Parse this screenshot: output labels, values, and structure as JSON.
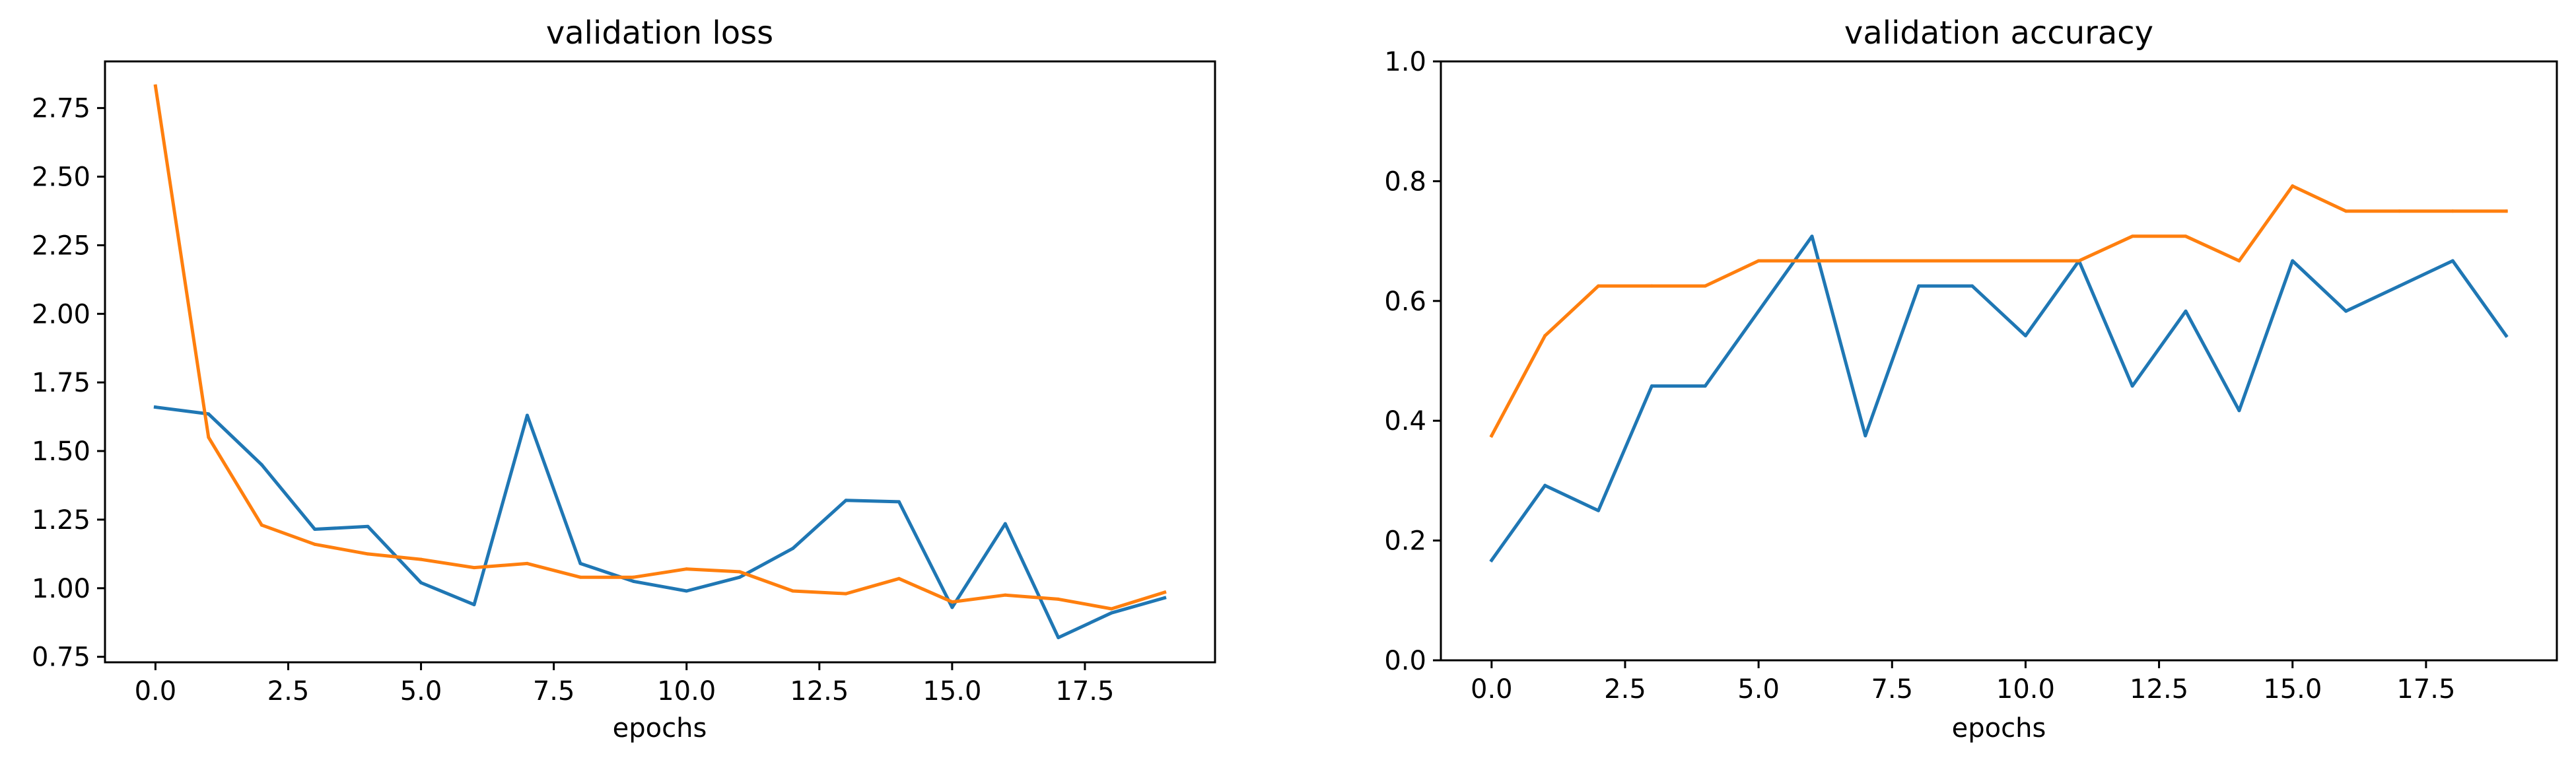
{
  "chart_data": [
    {
      "type": "line",
      "title": "validation loss",
      "xlabel": "epochs",
      "ylabel": "",
      "x": [
        0,
        1,
        2,
        3,
        4,
        5,
        6,
        7,
        8,
        9,
        10,
        11,
        12,
        13,
        14,
        15,
        16,
        17,
        18,
        19
      ],
      "xlim": [
        -0.95,
        19.95
      ],
      "ylim": [
        0.73,
        2.92
      ],
      "xticks": [
        0.0,
        2.5,
        5.0,
        7.5,
        10.0,
        12.5,
        15.0,
        17.5
      ],
      "xtick_labels": [
        "0.0",
        "2.5",
        "5.0",
        "7.5",
        "10.0",
        "12.5",
        "15.0",
        "17.5"
      ],
      "yticks": [
        0.75,
        1.0,
        1.25,
        1.5,
        1.75,
        2.0,
        2.25,
        2.5,
        2.75
      ],
      "ytick_labels": [
        "0.75",
        "1.00",
        "1.25",
        "1.50",
        "1.75",
        "2.00",
        "2.25",
        "2.50",
        "2.75"
      ],
      "grid": false,
      "series": [
        {
          "color": "#1f77b4",
          "values": [
            1.66,
            1.635,
            1.45,
            1.215,
            1.225,
            1.02,
            0.94,
            1.63,
            1.09,
            1.025,
            0.99,
            1.04,
            1.145,
            1.32,
            1.315,
            0.93,
            1.235,
            0.82,
            0.91,
            0.965
          ]
        },
        {
          "color": "#ff7f0e",
          "values": [
            2.83,
            1.55,
            1.23,
            1.16,
            1.125,
            1.105,
            1.075,
            1.09,
            1.04,
            1.04,
            1.07,
            1.06,
            0.99,
            0.98,
            1.035,
            0.95,
            0.975,
            0.96,
            0.925,
            0.985
          ]
        }
      ]
    },
    {
      "type": "line",
      "title": "validation accuracy",
      "xlabel": "epochs",
      "ylabel": "",
      "x": [
        0,
        1,
        2,
        3,
        4,
        5,
        6,
        7,
        8,
        9,
        10,
        11,
        12,
        13,
        14,
        15,
        16,
        17,
        18,
        19
      ],
      "xlim": [
        -0.95,
        19.95
      ],
      "ylim": [
        0.0,
        1.0
      ],
      "xticks": [
        0.0,
        2.5,
        5.0,
        7.5,
        10.0,
        12.5,
        15.0,
        17.5
      ],
      "xtick_labels": [
        "0.0",
        "2.5",
        "5.0",
        "7.5",
        "10.0",
        "12.5",
        "15.0",
        "17.5"
      ],
      "yticks": [
        0.0,
        0.2,
        0.4,
        0.6,
        0.8,
        1.0
      ],
      "ytick_labels": [
        "0.0",
        "0.2",
        "0.4",
        "0.6",
        "0.8",
        "1.0"
      ],
      "grid": false,
      "series": [
        {
          "color": "#1f77b4",
          "values": [
            0.167,
            0.292,
            0.25,
            0.458,
            0.458,
            0.583,
            0.708,
            0.375,
            0.625,
            0.625,
            0.542,
            0.667,
            0.458,
            0.583,
            0.417,
            0.667,
            0.583,
            0.625,
            0.667,
            0.542
          ]
        },
        {
          "color": "#ff7f0e",
          "values": [
            0.375,
            0.542,
            0.625,
            0.625,
            0.625,
            0.667,
            0.667,
            0.667,
            0.667,
            0.667,
            0.667,
            0.667,
            0.708,
            0.708,
            0.667,
            0.792,
            0.75,
            0.75,
            0.75,
            0.75
          ]
        }
      ]
    }
  ]
}
